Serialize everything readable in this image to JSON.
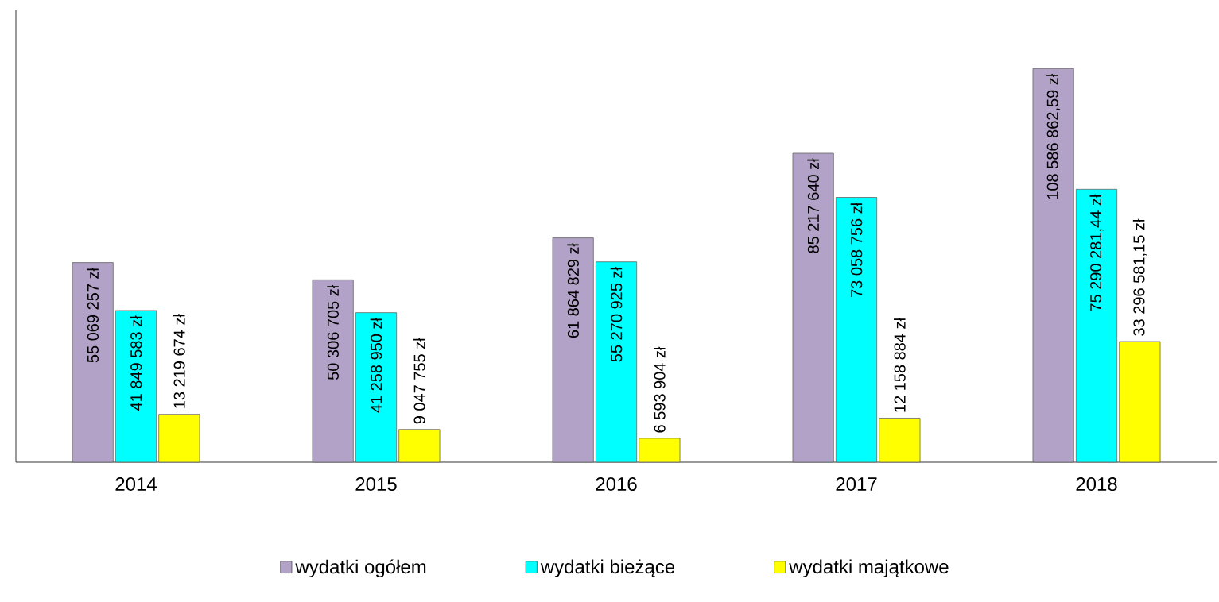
{
  "chart_data": {
    "type": "bar",
    "categories": [
      "2014",
      "2015",
      "2016",
      "2017",
      "2018"
    ],
    "legend": "bottom",
    "series": [
      {
        "name": "wydatki ogółem",
        "color": "#b3a2c7",
        "values": [
          55069257,
          50306705,
          61864829,
          85217640,
          108586862.59
        ],
        "value_labels": [
          "55 069 257 zł",
          "50 306 705 zł",
          "61 864 829 zł",
          "85 217 640 zł",
          "108 586 862,59 zł"
        ]
      },
      {
        "name": "wydatki bieżące",
        "color": "#00ffff",
        "values": [
          41849583,
          41258950,
          55270925,
          73058756,
          75290281.44
        ],
        "value_labels": [
          "41 849 583 zł",
          "41 258 950 zł",
          "55 270 925 zł",
          "73 058 756 zł",
          "75 290 281,44 zł"
        ]
      },
      {
        "name": "wydatki majątkowe",
        "color": "#ffff00",
        "values": [
          13219674,
          9047755,
          6593904,
          12158884,
          33296581.15
        ],
        "value_labels": [
          "13 219 674 zł",
          "9 047 755 zł",
          "6 593 904 zł",
          "12 158 884 zł",
          "33 296 581,15 zł"
        ]
      }
    ]
  }
}
